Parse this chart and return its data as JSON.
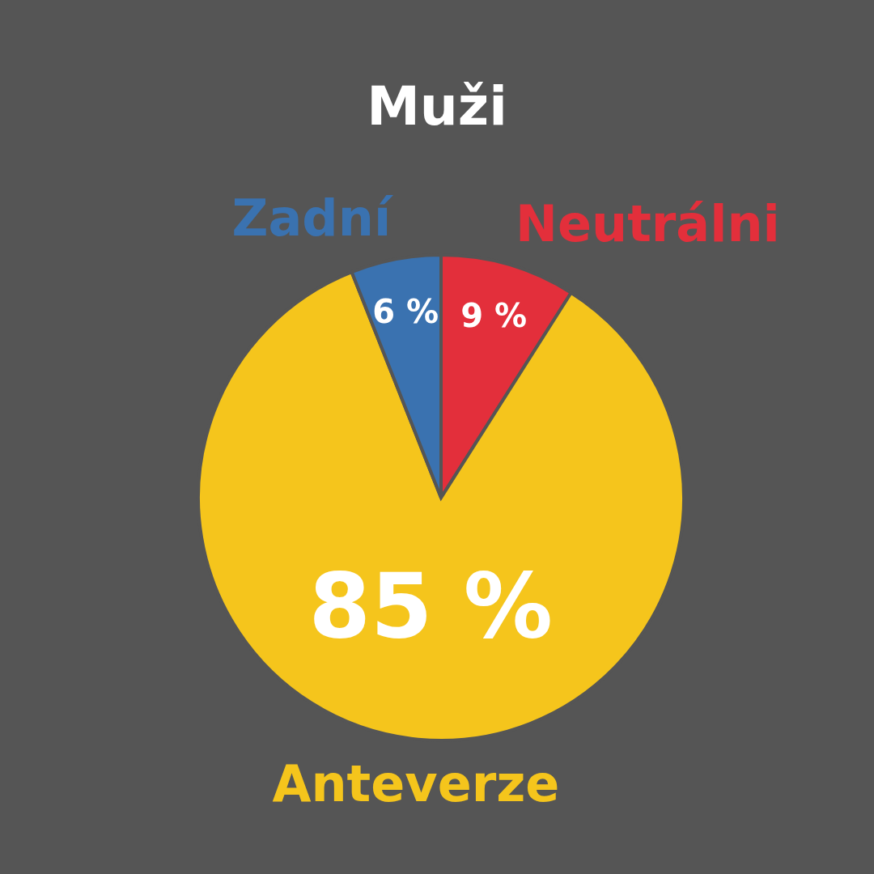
{
  "chart_data": {
    "type": "pie",
    "title": "Muži",
    "categories": [
      "Neutrálni",
      "Anteverze",
      "Zadní"
    ],
    "values": [
      9,
      85,
      6
    ],
    "colors": [
      "#e32f3b",
      "#f5c51c",
      "#3a72b0"
    ],
    "value_labels": [
      "9 %",
      "85 %",
      "6 %"
    ]
  }
}
